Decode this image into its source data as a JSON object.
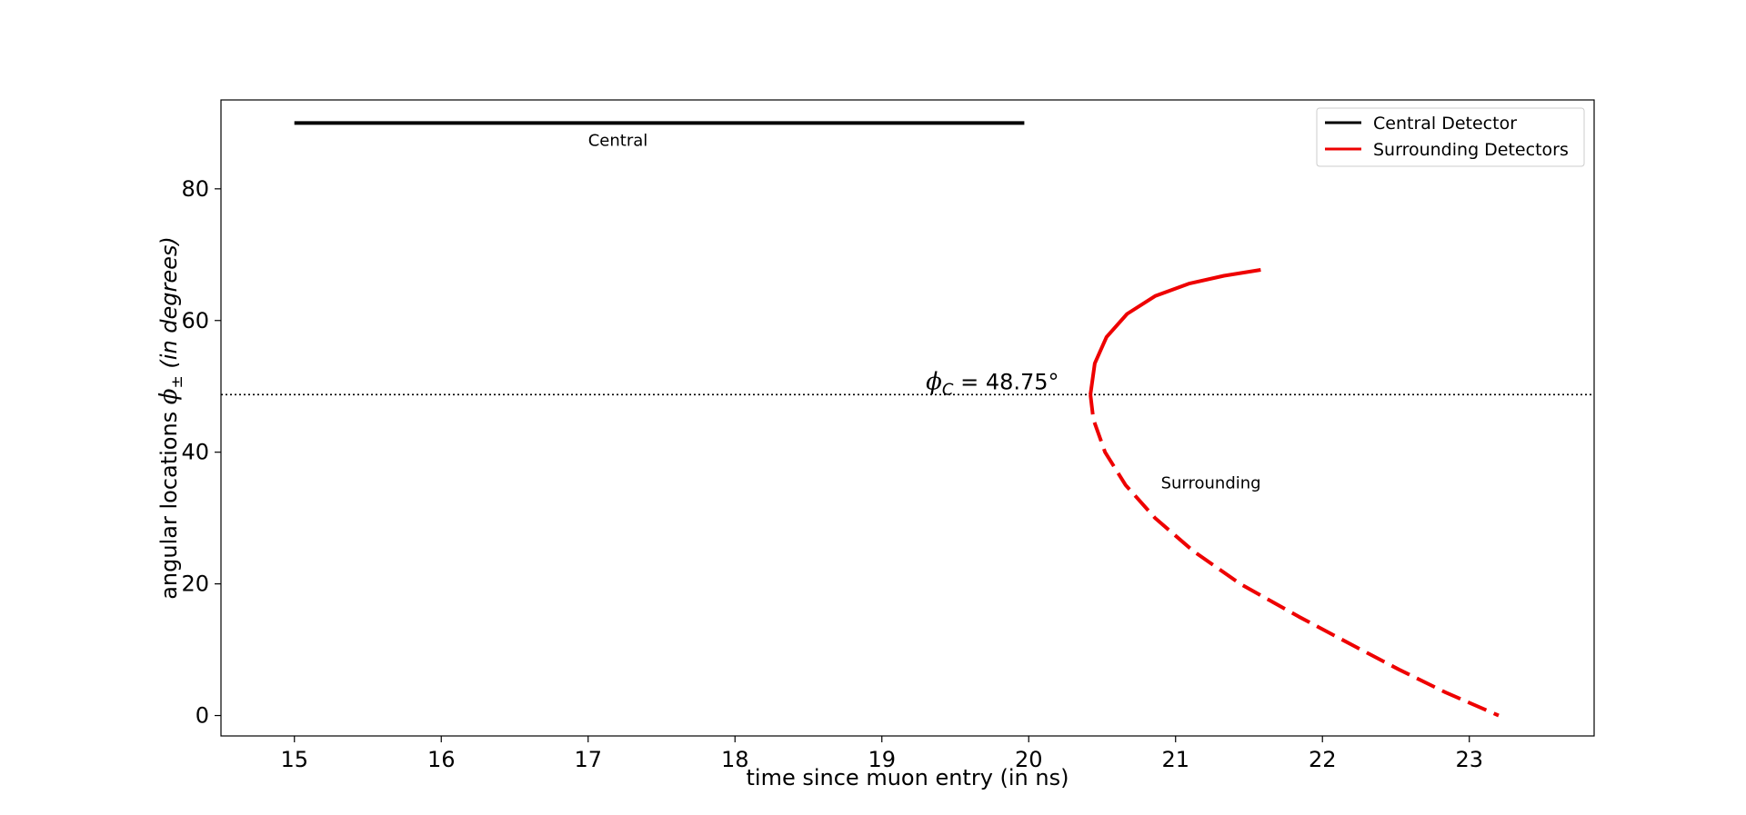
{
  "chart_data": {
    "type": "line",
    "xlabel": "time since muon entry (in ns)",
    "ylabel": {
      "prefix": "angular locations ",
      "symbol": "ϕ",
      "subscript": "±",
      "suffix": " (in degrees)"
    },
    "xlim": [
      14.5,
      23.85
    ],
    "ylim": [
      -3.1,
      93.5
    ],
    "xticks": [
      15,
      16,
      17,
      18,
      19,
      20,
      21,
      22,
      23
    ],
    "yticks": [
      0,
      20,
      40,
      60,
      80
    ],
    "grid": false,
    "legend": {
      "placement": "top-right",
      "entries": [
        {
          "label": "Central Detector",
          "color": "#000000"
        },
        {
          "label": "Surrounding Detectors",
          "color": "#ee0000"
        }
      ]
    },
    "reference_line": {
      "y": 48.75,
      "style": "dotted",
      "label": {
        "symbol": "ϕ",
        "subscript": "C",
        "text": " = 48.75°"
      },
      "label_x": 19.3
    },
    "annotations": [
      {
        "text": "Central",
        "x": 17.0,
        "y": 86.5
      },
      {
        "text": "Surrounding",
        "x": 20.9,
        "y": 34.5
      }
    ],
    "series": [
      {
        "name": "Central Detector",
        "color": "#000000",
        "style": "solid",
        "points": [
          [
            15.0,
            90
          ],
          [
            19.97,
            90
          ]
        ]
      },
      {
        "name": "Surrounding Detectors",
        "color": "#ee0000",
        "style": "solid",
        "points": [
          [
            20.42,
            48.75
          ],
          [
            20.45,
            53.5
          ],
          [
            20.53,
            57.5
          ],
          [
            20.67,
            61.0
          ],
          [
            20.86,
            63.7
          ],
          [
            21.09,
            65.6
          ],
          [
            21.33,
            66.8
          ],
          [
            21.58,
            67.7
          ]
        ]
      },
      {
        "name": "Surrounding Detectors",
        "color": "#ee0000",
        "style": "dashed",
        "points": [
          [
            20.42,
            48.75
          ],
          [
            20.44,
            45.0
          ],
          [
            20.52,
            40.0
          ],
          [
            20.66,
            35.0
          ],
          [
            20.86,
            30.0
          ],
          [
            21.12,
            25.0
          ],
          [
            21.44,
            20.0
          ],
          [
            21.84,
            15.0
          ],
          [
            22.22,
            10.5
          ],
          [
            22.52,
            7.0
          ],
          [
            22.84,
            3.5
          ],
          [
            23.2,
            0.0
          ]
        ]
      }
    ]
  }
}
